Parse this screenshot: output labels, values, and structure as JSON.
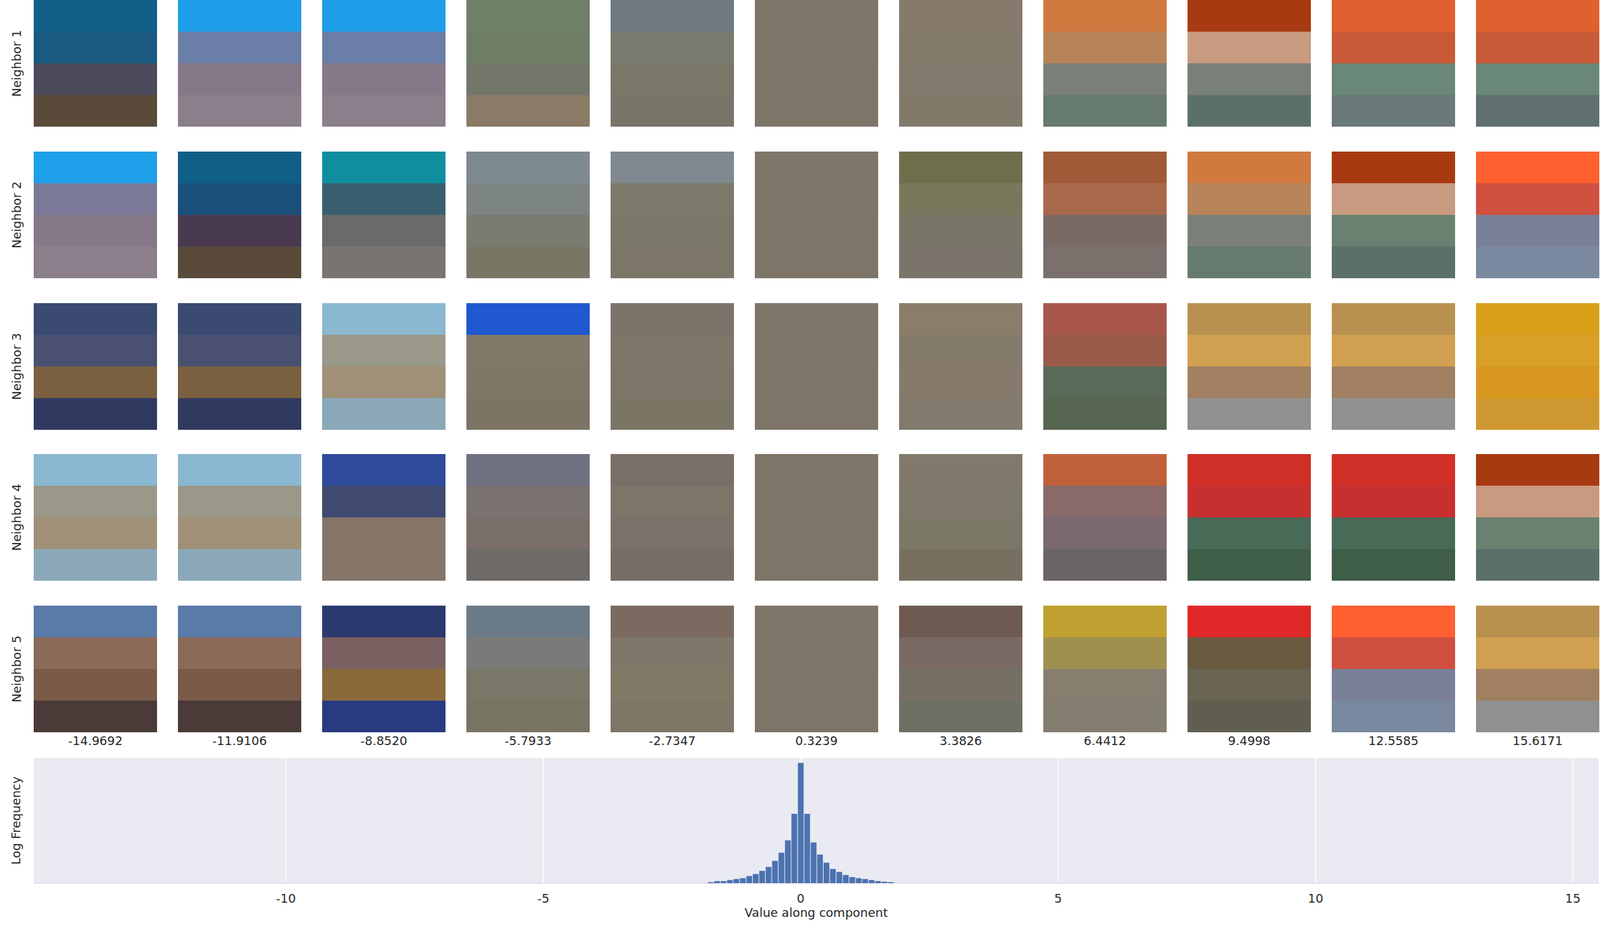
{
  "chart_data": {
    "type": "histogram",
    "xlabel": "Value along component",
    "ylabel": "Log Frequency",
    "bins": [
      -1.8125,
      -1.6875,
      -1.5625,
      -1.4375,
      -1.3125,
      -1.1875,
      -1.0625,
      -0.9375,
      -0.8125,
      -0.6875,
      -0.5625,
      -0.4375,
      -0.3125,
      -0.1875,
      -0.0625,
      0.0625,
      0.1875,
      0.3125,
      0.4375,
      0.5625,
      0.6875,
      0.8125,
      0.9375,
      1.0625,
      1.1875,
      1.3125,
      1.4375,
      1.5625,
      1.6875,
      1.8125
    ],
    "values": [
      0.05,
      0.1,
      0.1,
      0.15,
      0.2,
      0.24,
      0.34,
      0.44,
      0.59,
      0.78,
      1.07,
      1.46,
      2.05,
      3.32,
      5.76,
      3.32,
      1.95,
      1.37,
      0.98,
      0.68,
      0.54,
      0.39,
      0.29,
      0.24,
      0.2,
      0.15,
      0.1,
      0.07,
      0.05
    ],
    "color": "#4c72b0",
    "xlim": [
      -14.9,
      15.5
    ],
    "xticks": [
      -10,
      -5,
      0,
      5,
      10,
      15
    ],
    "ylim": [
      0,
      6
    ],
    "grid": true,
    "tick_labels": "x"
  },
  "patch_grid": {
    "row_labels": [
      "Neighbor 1",
      "Neighbor 2",
      "Neighbor 3",
      "Neighbor 4",
      "Neighbor 5"
    ],
    "column_values": [
      -14.9692,
      -11.9106,
      {
        "value": -8.852,
        "label": "-8.8520"
      },
      -5.7933,
      -2.7347,
      0.3239,
      3.3826,
      6.4412,
      9.4998,
      12.5585,
      15.6171
    ],
    "patches": [
      [
        [
          "#0f5f86",
          "#1a5a80",
          "#4a4a5a",
          "#5a4a3a"
        ],
        [
          "#1e9ee8",
          "#6b7ea8",
          "#857888",
          "#8a7f8a"
        ],
        [
          "#1e9ee8",
          "#6b7ea8",
          "#857888",
          "#8a7f8a"
        ],
        [
          "#6f8068",
          "#6e7d66",
          "#72776a",
          "#8a7a66"
        ],
        [
          "#6e7a80",
          "#7a7a70",
          "#7a7668",
          "#787468"
        ],
        [
          "#7e7668",
          "#7e7668",
          "#7d7567",
          "#7d7567"
        ],
        [
          "#857a6c",
          "#847a6c",
          "#827a6c",
          "#817a6b"
        ],
        [
          "#d07a40",
          "#b7845a",
          "#7a8078",
          "#667a6e"
        ],
        [
          "#a83a12",
          "#c89a80",
          "#788078",
          "#5c706a"
        ],
        [
          "#e06030",
          "#c85a38",
          "#6a8878",
          "#6a7a78"
        ],
        [
          "#e06030",
          "#c85a38",
          "#6a8878",
          "#607070"
        ]
      ],
      [
        [
          "#1ea0ea",
          "#7a7a98",
          "#857888",
          "#8a7f8a"
        ],
        [
          "#0f5f86",
          "#1a4f7a",
          "#4a3a50",
          "#5a4a3a"
        ],
        [
          "#0f8ea0",
          "#3a6070",
          "#6a6a6a",
          "#7a7470"
        ],
        [
          "#7d8a90",
          "#7d8484",
          "#7a7c70",
          "#7a7666"
        ],
        [
          "#808890",
          "#7c7a6a",
          "#7a7668",
          "#7c7668"
        ],
        [
          "#7e7668",
          "#7e7668",
          "#7d7567",
          "#7d7567"
        ],
        [
          "#6e6e4c",
          "#78785c",
          "#797668",
          "#7a746a"
        ],
        [
          "#a05a38",
          "#a8684a",
          "#7a6a66",
          "#7a706c"
        ],
        [
          "#d07a40",
          "#b7845a",
          "#7a8078",
          "#667a6e"
        ],
        [
          "#a83a12",
          "#c89a80",
          "#6a8070",
          "#5c706a"
        ],
        [
          "#ff6030",
          "#d05040",
          "#7a8098",
          "#7a88a0"
        ]
      ],
      [
        [
          "#3a4a70",
          "#4a5070",
          "#7a6040",
          "#303a60"
        ],
        [
          "#3a4a70",
          "#4a5070",
          "#7a6040",
          "#303a60"
        ],
        [
          "#8ab8d0",
          "#9a9888",
          "#a09078",
          "#8aa8b8"
        ],
        [
          "#2058d0",
          "#807868",
          "#7e7666",
          "#7c7464"
        ],
        [
          "#7c7468",
          "#7e7668",
          "#7d7567",
          "#7b7565"
        ],
        [
          "#7e7668",
          "#7e7668",
          "#7d7567",
          "#7d7567"
        ],
        [
          "#8a7e6a",
          "#847a6c",
          "#857a6c",
          "#827a6c"
        ],
        [
          "#a8564a",
          "#9a5a4a",
          "#5a6a58",
          "#566650"
        ],
        [
          "#b89050",
          "#d0a050",
          "#a08060",
          "#909090"
        ],
        [
          "#b89050",
          "#d0a050",
          "#a08060",
          "#909090"
        ],
        [
          "#d8a018",
          "#d8a028",
          "#d89820",
          "#d09830"
        ]
      ],
      [
        [
          "#8ab8d0",
          "#9a9888",
          "#a09078",
          "#8aa8b8"
        ],
        [
          "#8ab8d0",
          "#9a9888",
          "#a09078",
          "#8aa8b8"
        ],
        [
          "#2f4a9a",
          "#404a70",
          "#857468",
          "#857468"
        ],
        [
          "#6e7280",
          "#7a7270",
          "#7a6e68",
          "#6e6a68"
        ],
        [
          "#7a6e68",
          "#7d7567",
          "#7a7268",
          "#766e66"
        ],
        [
          "#7e7668",
          "#7e7668",
          "#7d7567",
          "#7d7567"
        ],
        [
          "#817a6c",
          "#7e786a",
          "#7c7868",
          "#777060"
        ],
        [
          "#c0603a",
          "#886a6a",
          "#7a6a70",
          "#6a6468"
        ],
        [
          "#d03028",
          "#c83030",
          "#4a6a58",
          "#3e5e48"
        ],
        [
          "#d03028",
          "#c83030",
          "#4a6a58",
          "#3e5e48"
        ],
        [
          "#a83a12",
          "#c89a80",
          "#6a8070",
          "#5c706a"
        ]
      ],
      [
        [
          "#5a7aa8",
          "#8a6a58",
          "#7a5a48",
          "#4a3a38"
        ],
        [
          "#5a7aa8",
          "#8a6a58",
          "#7a5a48",
          "#4a3a38"
        ],
        [
          "#2a3a70",
          "#7a6060",
          "#8a6a3a",
          "#2a3a80"
        ],
        [
          "#6a7a88",
          "#7a7a78",
          "#7a7668",
          "#787462"
        ],
        [
          "#7a6a60",
          "#7e7668",
          "#827866",
          "#7e7666"
        ],
        [
          "#7e7668",
          "#7e7668",
          "#7d7567",
          "#7d7567"
        ],
        [
          "#6e5a50",
          "#7a6a64",
          "#767064",
          "#6e7064"
        ],
        [
          "#c0a030",
          "#a09050",
          "#887e70",
          "#847e70"
        ],
        [
          "#e02828",
          "#6a5a40",
          "#6a6452",
          "#605e50"
        ],
        [
          "#ff6030",
          "#d05040",
          "#7a8098",
          "#7a88a0"
        ],
        [
          "#b89050",
          "#d0a050",
          "#a08060",
          "#909090"
        ]
      ]
    ]
  }
}
